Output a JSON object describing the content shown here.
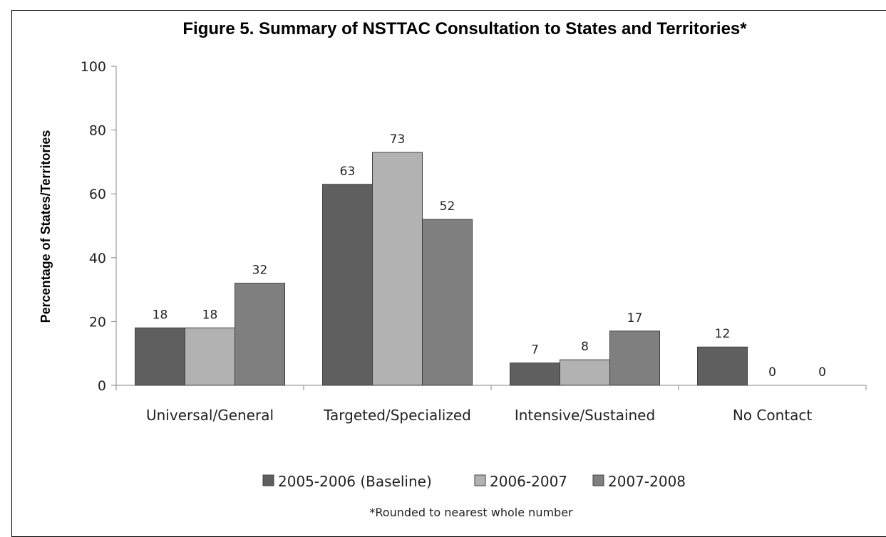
{
  "chart_data": {
    "type": "bar",
    "title": "Figure 5. Summary of NSTTAC Consultation to States and Territories*",
    "xlabel": "",
    "ylabel": "Percentage of States/Territories",
    "ylim": [
      0,
      100
    ],
    "yticks": [
      0,
      20,
      40,
      60,
      80,
      100
    ],
    "grid": false,
    "legend_position": "bottom",
    "categories": [
      "Universal/General",
      "Targeted/Specialized",
      "Intensive/Sustained",
      "No Contact"
    ],
    "series": [
      {
        "name": "2005-2006 (Baseline)",
        "color": "#5f5f5f",
        "values": [
          18,
          63,
          7,
          12
        ]
      },
      {
        "name": "2006-2007",
        "color": "#b2b2b2",
        "values": [
          18,
          73,
          8,
          0
        ]
      },
      {
        "name": "2007-2008",
        "color": "#7f7f7f",
        "values": [
          32,
          52,
          17,
          0
        ]
      }
    ],
    "footnote": "*Rounded to nearest whole number"
  }
}
